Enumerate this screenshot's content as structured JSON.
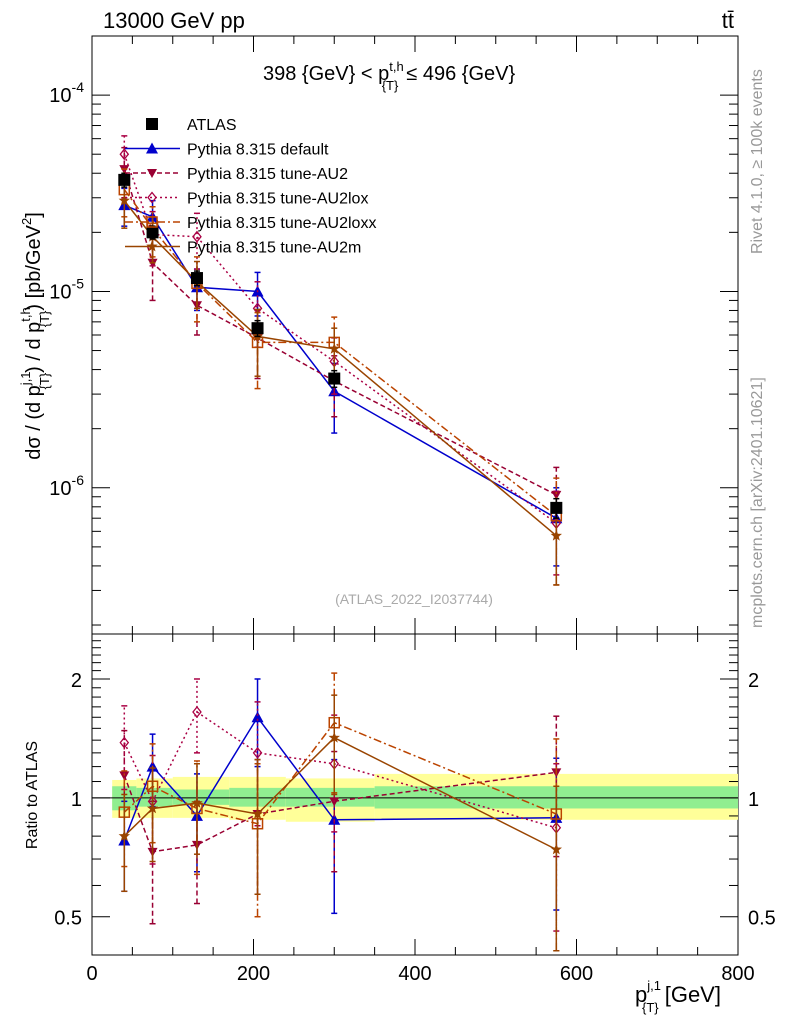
{
  "header": {
    "energy_label": "13000 GeV pp",
    "process_label": "tt̄"
  },
  "side_labels": {
    "rivet": "Rivet 4.1.0, ≥ 100k events",
    "mcplots": "mcplots.cern.ch [arXiv:2401.10621]"
  },
  "colors": {
    "ATLAS": "#000000",
    "default": "#0000cc",
    "AU2": "#990033",
    "AU2lox": "#aa0044",
    "AU2loxx": "#bb4400",
    "AU2m": "#994400",
    "band_stat": "#90ee90",
    "band_total": "#ffff99"
  },
  "chart_data": [
    {
      "type": "line",
      "title": "398 {GeV} < p{T}t,h ≤ 496 {GeV}",
      "title_parts": {
        "left": "398 {GeV} < p",
        "sup": "t,h",
        "sub": "{T}",
        "right": "≤ 496 {GeV}"
      },
      "ylabel": "dσ / (d p{T}j,1) / d p{T}t,h) [pb/GeV²]",
      "ylabel_parts": {
        "a": "dσ / (d p",
        "sup1": "j,1",
        "sub1": "{T}",
        "b": ") / d p",
        "sup2": "t,h",
        "sub2": "{T}",
        "c": ") [pb/GeV",
        "sup3": "2",
        "d": "]"
      },
      "yscale": "log",
      "ylim": [
        1.8e-07,
        0.0002
      ],
      "xlim": [
        0,
        800
      ],
      "yticks": [
        1e-06,
        1e-05,
        0.0001
      ],
      "ytick_labels": [
        {
          "base": "10",
          "exp": "-6"
        },
        {
          "base": "10",
          "exp": "-5"
        },
        {
          "base": "10",
          "exp": "-4"
        }
      ],
      "watermark": "(ATLAS_2022_I2037744)",
      "legend_position": "top-left",
      "x": [
        40,
        75,
        130,
        205,
        300,
        575
      ],
      "series": [
        {
          "key": "ATLAS",
          "name": "ATLAS",
          "values": [
            3.7e-05,
            2e-05,
            1.17e-05,
            6.5e-06,
            3.6e-06,
            7.9e-07
          ],
          "err_lo": [
            3e-06,
            1.5e-06,
            1e-06,
            6e-07,
            3.5e-07,
            9e-08
          ],
          "err_hi": [
            3e-06,
            1.5e-06,
            1e-06,
            6e-07,
            3.5e-07,
            9e-08
          ]
        },
        {
          "key": "default",
          "name": "Pythia 8.315 default",
          "values": [
            2.75e-05,
            2.4e-05,
            1.05e-05,
            1e-05,
            3.1e-06,
            7e-07
          ],
          "err_lo": [
            6e-06,
            5e-06,
            2.5e-06,
            2.5e-06,
            1.2e-06,
            3e-07
          ],
          "err_hi": [
            6e-06,
            5e-06,
            2.5e-06,
            2.5e-06,
            1.2e-06,
            3e-07
          ]
        },
        {
          "key": "AU2",
          "name": "Pythia 8.315 tune-AU2",
          "values": [
            4.2e-05,
            1.4e-05,
            8.5e-06,
            5.8e-06,
            3.5e-06,
            9.2e-07
          ],
          "err_lo": [
            1.2e-05,
            5e-06,
            2.5e-06,
            2.2e-06,
            1.2e-06,
            3.5e-07
          ],
          "err_hi": [
            1.2e-05,
            5e-06,
            2.5e-06,
            2.2e-06,
            1.2e-06,
            3.5e-07
          ]
        },
        {
          "key": "AU2lox",
          "name": "Pythia 8.315 tune-AU2lox",
          "values": [
            5e-05,
            1.95e-05,
            1.9e-05,
            8.2e-06,
            4.4e-06,
            6.6e-07
          ],
          "err_lo": [
            1.2e-05,
            6e-06,
            6e-06,
            3e-06,
            1.4e-06,
            3e-07
          ],
          "err_hi": [
            1.2e-05,
            6e-06,
            6e-06,
            3e-06,
            1.4e-06,
            3e-07
          ]
        },
        {
          "key": "AU2loxx",
          "name": "Pythia 8.315 tune-AU2loxx",
          "values": [
            3.3e-05,
            2.1e-05,
            1.1e-05,
            5.5e-06,
            5.5e-06,
            7.2e-07
          ],
          "err_lo": [
            9e-06,
            6e-06,
            4e-06,
            2.3e-06,
            1.9e-06,
            4e-07
          ],
          "err_hi": [
            9e-06,
            6e-06,
            4e-06,
            2.3e-06,
            1.9e-06,
            4e-07
          ]
        },
        {
          "key": "AU2m",
          "name": "Pythia 8.315 tune-AU2m",
          "values": [
            2.9e-05,
            1.9e-05,
            1.12e-05,
            5.9e-06,
            5.1e-06,
            5.7e-07
          ],
          "err_lo": [
            8e-06,
            5e-06,
            3e-06,
            2.2e-06,
            1.4e-06,
            2.5e-07
          ],
          "err_hi": [
            8e-06,
            5e-06,
            3e-06,
            2.2e-06,
            1.4e-06,
            2.5e-07
          ]
        }
      ]
    },
    {
      "type": "line",
      "title": "",
      "ylabel": "Ratio to ATLAS",
      "xlabel": "p{T}j,1 [GeV]",
      "xlabel_parts": {
        "a": "p",
        "sup": "j,1",
        "sub": "{T}",
        "b": " [GeV]"
      },
      "yscale": "log",
      "ylim": [
        0.4,
        2.6
      ],
      "xlim": [
        0,
        800
      ],
      "yticks": [
        0.5,
        1,
        2
      ],
      "ytick_labels": [
        "0.5",
        "1",
        "2"
      ],
      "xticks": [
        0,
        200,
        400,
        600,
        800
      ],
      "xtick_labels": [
        "0",
        "200",
        "400",
        "600",
        "800"
      ],
      "reference_line": 1,
      "bands": {
        "edges": [
          25,
          55,
          100,
          170,
          240,
          350,
          800
        ],
        "stat_lo": [
          0.93,
          0.95,
          0.96,
          0.95,
          0.95,
          0.94,
          0.93
        ],
        "stat_hi": [
          1.07,
          1.06,
          1.05,
          1.06,
          1.06,
          1.07,
          1.08
        ],
        "total_lo": [
          0.89,
          0.89,
          0.89,
          0.88,
          0.87,
          0.88,
          0.88
        ],
        "total_hi": [
          1.11,
          1.12,
          1.13,
          1.13,
          1.12,
          1.15,
          1.18
        ]
      },
      "x": [
        40,
        75,
        130,
        205,
        300,
        575
      ],
      "series": [
        {
          "key": "default",
          "values": [
            0.78,
            1.2,
            0.9,
            1.6,
            0.88,
            0.89
          ],
          "err_lo": [
            0.2,
            0.25,
            0.25,
            0.4,
            0.37,
            0.37
          ],
          "err_hi": [
            0.2,
            0.25,
            0.25,
            0.4,
            0.37,
            0.37
          ]
        },
        {
          "key": "AU2",
          "values": [
            1.14,
            0.73,
            0.76,
            0.91,
            0.98,
            1.16
          ],
          "err_lo": [
            0.34,
            0.25,
            0.22,
            0.34,
            0.33,
            0.45
          ],
          "err_hi": [
            0.34,
            0.25,
            0.22,
            0.34,
            0.33,
            0.45
          ]
        },
        {
          "key": "AU2lox",
          "values": [
            1.38,
            0.98,
            1.65,
            1.3,
            1.22,
            0.84
          ],
          "err_lo": [
            0.33,
            0.3,
            0.35,
            0.45,
            0.4,
            0.38
          ],
          "err_hi": [
            0.33,
            0.3,
            0.35,
            0.45,
            0.4,
            0.38
          ]
        },
        {
          "key": "AU2loxx",
          "values": [
            0.92,
            1.07,
            0.94,
            0.86,
            1.55,
            0.91
          ],
          "err_lo": [
            0.25,
            0.3,
            0.3,
            0.36,
            0.52,
            0.5
          ],
          "err_hi": [
            0.25,
            0.3,
            0.3,
            0.36,
            0.52,
            0.5
          ]
        },
        {
          "key": "AU2m",
          "values": [
            0.8,
            0.94,
            0.97,
            0.91,
            1.42,
            0.74
          ],
          "err_lo": [
            0.22,
            0.25,
            0.25,
            0.34,
            0.4,
            0.33
          ],
          "err_hi": [
            0.22,
            0.25,
            0.25,
            0.34,
            0.4,
            0.33
          ]
        }
      ]
    }
  ]
}
